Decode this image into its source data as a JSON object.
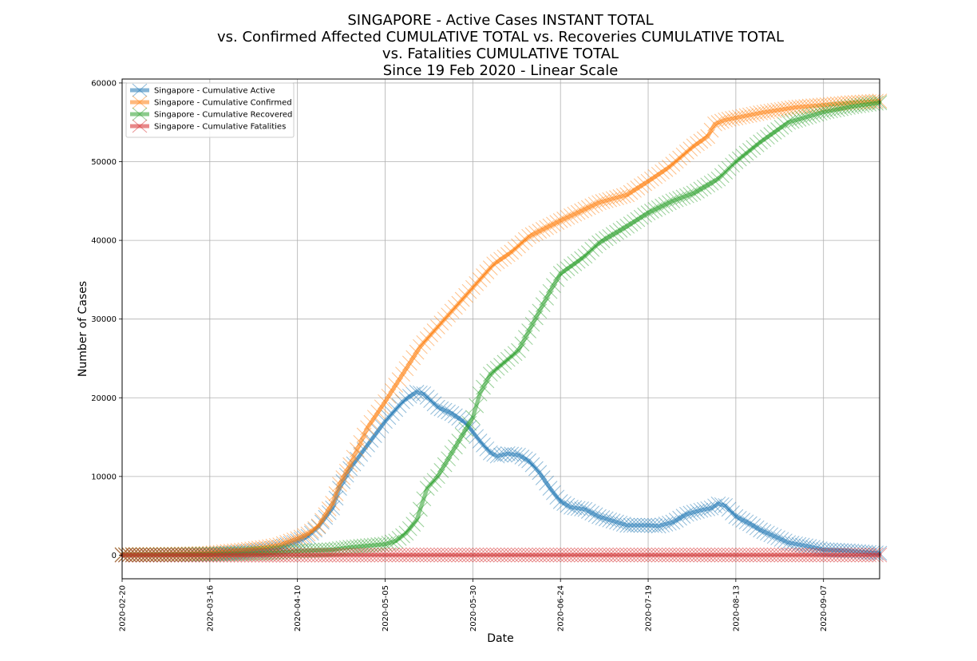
{
  "chart_data": {
    "type": "line",
    "title": [
      "SINGAPORE - Active Cases INSTANT TOTAL",
      "vs. Confirmed Affected CUMULATIVE TOTAL vs. Recoveries CUMULATIVE TOTAL",
      "vs. Fatalities CUMULATIVE TOTAL",
      "Since 19 Feb 2020 - Linear Scale"
    ],
    "xlabel": "Date",
    "ylabel": "Number of Cases",
    "xlim": [
      "2020-02-20",
      "2020-09-23"
    ],
    "ylim": [
      -3000,
      60500
    ],
    "x_ticks": [
      "2020-02-20",
      "2020-03-16",
      "2020-04-10",
      "2020-05-05",
      "2020-05-30",
      "2020-06-24",
      "2020-07-19",
      "2020-08-13",
      "2020-09-07"
    ],
    "y_ticks": [
      0,
      10000,
      20000,
      30000,
      40000,
      50000,
      60000
    ],
    "grid": true,
    "legend_position": "top-left",
    "marker": "x",
    "series": [
      {
        "name": "Singapore - Cumulative Active",
        "color": "#1f77b4",
        "points": [
          [
            "2020-02-20",
            50
          ],
          [
            "2020-03-01",
            60
          ],
          [
            "2020-03-10",
            80
          ],
          [
            "2020-03-16",
            120
          ],
          [
            "2020-03-25",
            350
          ],
          [
            "2020-04-01",
            700
          ],
          [
            "2020-04-05",
            1000
          ],
          [
            "2020-04-10",
            1800
          ],
          [
            "2020-04-13",
            2400
          ],
          [
            "2020-04-16",
            3600
          ],
          [
            "2020-04-20",
            6000
          ],
          [
            "2020-04-22",
            8500
          ],
          [
            "2020-04-25",
            11000
          ],
          [
            "2020-04-30",
            14000
          ],
          [
            "2020-05-05",
            17000
          ],
          [
            "2020-05-10",
            19500
          ],
          [
            "2020-05-12",
            20200
          ],
          [
            "2020-05-14",
            20700
          ],
          [
            "2020-05-16",
            20500
          ],
          [
            "2020-05-20",
            18800
          ],
          [
            "2020-05-24",
            18000
          ],
          [
            "2020-05-28",
            16800
          ],
          [
            "2020-06-01",
            14500
          ],
          [
            "2020-06-04",
            13000
          ],
          [
            "2020-06-06",
            12600
          ],
          [
            "2020-06-09",
            12900
          ],
          [
            "2020-06-12",
            12700
          ],
          [
            "2020-06-15",
            12000
          ],
          [
            "2020-06-18",
            10500
          ],
          [
            "2020-06-21",
            8500
          ],
          [
            "2020-06-24",
            6800
          ],
          [
            "2020-06-27",
            6100
          ],
          [
            "2020-07-01",
            5800
          ],
          [
            "2020-07-05",
            4900
          ],
          [
            "2020-07-10",
            4200
          ],
          [
            "2020-07-13",
            3800
          ],
          [
            "2020-07-19",
            3800
          ],
          [
            "2020-07-22",
            3700
          ],
          [
            "2020-07-26",
            4200
          ],
          [
            "2020-07-30",
            5200
          ],
          [
            "2020-08-03",
            5700
          ],
          [
            "2020-08-06",
            6000
          ],
          [
            "2020-08-08",
            6500
          ],
          [
            "2020-08-10",
            6300
          ],
          [
            "2020-08-13",
            4900
          ],
          [
            "2020-08-17",
            4000
          ],
          [
            "2020-08-20",
            3200
          ],
          [
            "2020-08-25",
            2200
          ],
          [
            "2020-08-28",
            1600
          ],
          [
            "2020-09-03",
            1100
          ],
          [
            "2020-09-07",
            700
          ],
          [
            "2020-09-14",
            550
          ],
          [
            "2020-09-23",
            250
          ]
        ]
      },
      {
        "name": "Singapore - Cumulative Confirmed",
        "color": "#ff7f0e",
        "points": [
          [
            "2020-02-20",
            85
          ],
          [
            "2020-03-01",
            106
          ],
          [
            "2020-03-10",
            160
          ],
          [
            "2020-03-16",
            243
          ],
          [
            "2020-03-25",
            630
          ],
          [
            "2020-04-01",
            1000
          ],
          [
            "2020-04-05",
            1300
          ],
          [
            "2020-04-10",
            2100
          ],
          [
            "2020-04-13",
            2700
          ],
          [
            "2020-04-16",
            3700
          ],
          [
            "2020-04-20",
            6600
          ],
          [
            "2020-04-22",
            9000
          ],
          [
            "2020-04-25",
            11500
          ],
          [
            "2020-04-30",
            16200
          ],
          [
            "2020-05-05",
            19500
          ],
          [
            "2020-05-10",
            23000
          ],
          [
            "2020-05-15",
            26500
          ],
          [
            "2020-05-20",
            29000
          ],
          [
            "2020-05-25",
            31500
          ],
          [
            "2020-05-30",
            34000
          ],
          [
            "2020-06-05",
            37000
          ],
          [
            "2020-06-10",
            38500
          ],
          [
            "2020-06-15",
            40500
          ],
          [
            "2020-06-24",
            42500
          ],
          [
            "2020-07-05",
            44800
          ],
          [
            "2020-07-13",
            45800
          ],
          [
            "2020-07-19",
            47500
          ],
          [
            "2020-07-25",
            49300
          ],
          [
            "2020-08-01",
            52000
          ],
          [
            "2020-08-05",
            53200
          ],
          [
            "2020-08-07",
            54800
          ],
          [
            "2020-08-10",
            55300
          ],
          [
            "2020-08-20",
            56200
          ],
          [
            "2020-08-30",
            56900
          ],
          [
            "2020-09-07",
            57200
          ],
          [
            "2020-09-15",
            57500
          ],
          [
            "2020-09-23",
            57700
          ]
        ]
      },
      {
        "name": "Singapore - Cumulative Recovered",
        "color": "#2ca02c",
        "points": [
          [
            "2020-02-20",
            30
          ],
          [
            "2020-03-01",
            50
          ],
          [
            "2020-03-10",
            80
          ],
          [
            "2020-03-16",
            110
          ],
          [
            "2020-04-01",
            250
          ],
          [
            "2020-04-10",
            500
          ],
          [
            "2020-04-20",
            700
          ],
          [
            "2020-04-25",
            1000
          ],
          [
            "2020-05-05",
            1400
          ],
          [
            "2020-05-08",
            1800
          ],
          [
            "2020-05-11",
            2800
          ],
          [
            "2020-05-14",
            4500
          ],
          [
            "2020-05-17",
            8500
          ],
          [
            "2020-05-20",
            10000
          ],
          [
            "2020-05-24",
            13000
          ],
          [
            "2020-05-30",
            17500
          ],
          [
            "2020-06-01",
            20500
          ],
          [
            "2020-06-04",
            23000
          ],
          [
            "2020-06-08",
            24500
          ],
          [
            "2020-06-12",
            26000
          ],
          [
            "2020-06-15",
            28500
          ],
          [
            "2020-06-18",
            31000
          ],
          [
            "2020-06-21",
            33500
          ],
          [
            "2020-06-24",
            35800
          ],
          [
            "2020-06-27",
            36700
          ],
          [
            "2020-07-01",
            38000
          ],
          [
            "2020-07-05",
            39700
          ],
          [
            "2020-07-13",
            41800
          ],
          [
            "2020-07-19",
            43500
          ],
          [
            "2020-07-26",
            45000
          ],
          [
            "2020-08-01",
            46000
          ],
          [
            "2020-08-08",
            47800
          ],
          [
            "2020-08-13",
            50000
          ],
          [
            "2020-08-20",
            52500
          ],
          [
            "2020-08-28",
            55000
          ],
          [
            "2020-09-07",
            56300
          ],
          [
            "2020-09-15",
            57000
          ],
          [
            "2020-09-23",
            57500
          ]
        ]
      },
      {
        "name": "Singapore - Cumulative Fatalities",
        "color": "#d62728",
        "points": [
          [
            "2020-02-20",
            0
          ],
          [
            "2020-03-21",
            2
          ],
          [
            "2020-04-10",
            8
          ],
          [
            "2020-05-05",
            20
          ],
          [
            "2020-06-01",
            23
          ],
          [
            "2020-07-01",
            26
          ],
          [
            "2020-08-01",
            27
          ],
          [
            "2020-09-23",
            27
          ]
        ]
      }
    ]
  }
}
